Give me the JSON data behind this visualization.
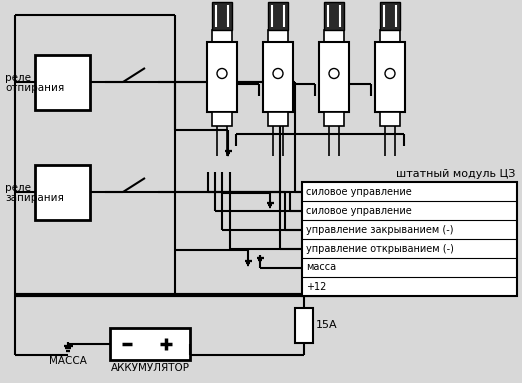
{
  "bg_color": "#d8d8d8",
  "line_color": "#000000",
  "box_fill": "#ffffff",
  "relay1_label_line1": "реле",
  "relay1_label_line2": "отпирания",
  "relay2_label_line1": "реле",
  "relay2_label_line2": "запирания",
  "module_label": "штатный модуль ЦЗ",
  "connector_rows": [
    "силовое управление",
    "силовое управление",
    "управление закрыванием (-)",
    "управление открыванием (-)",
    "масса",
    "+12"
  ],
  "fuse_label": "15А",
  "massa_label": "МАССА",
  "akk_label": "АККУМУЛЯТОР"
}
